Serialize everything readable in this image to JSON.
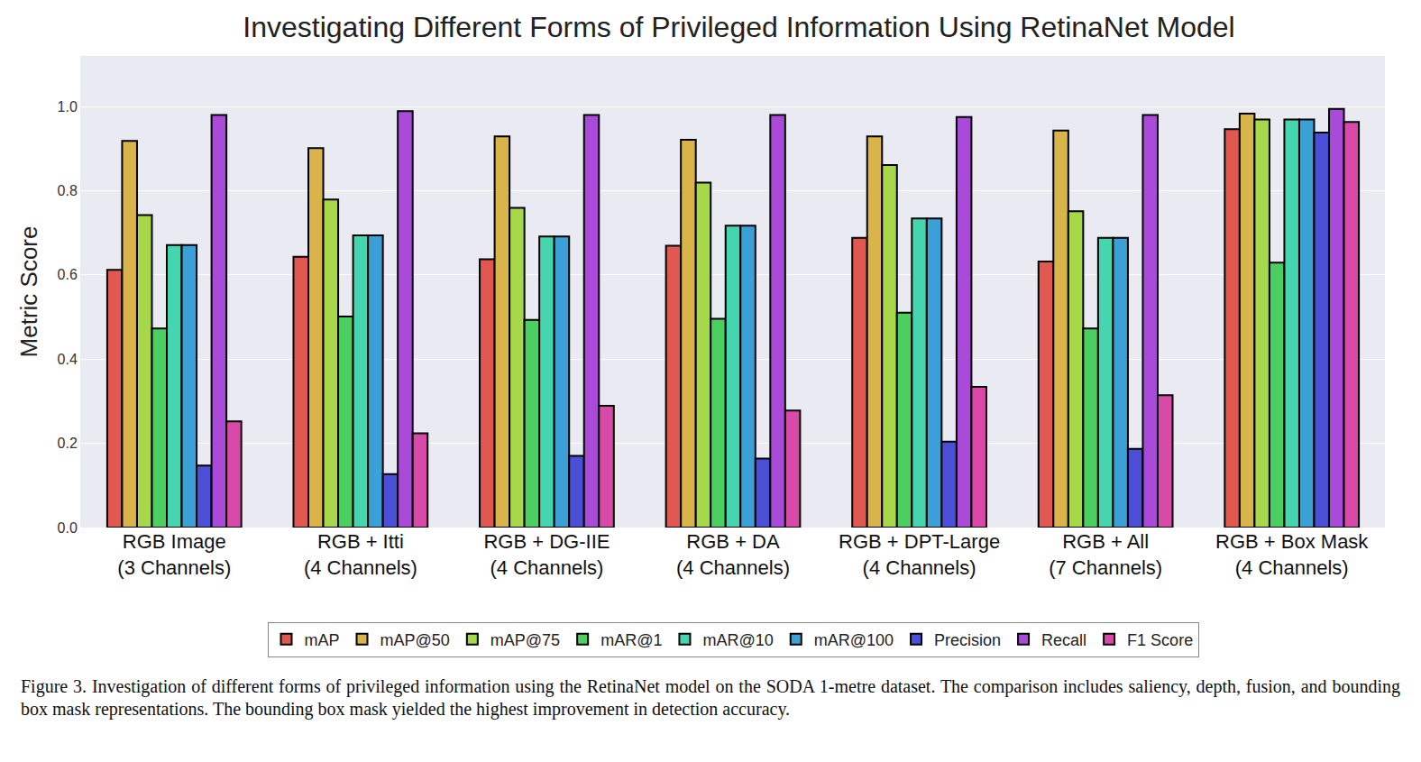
{
  "chart_data": {
    "type": "bar",
    "title": "Investigating Different Forms of Privileged Information Using RetinaNet Model",
    "y_label": "Metric Score",
    "categories": [
      "RGB Image (3 Channels)",
      "RGB + Itti (4 Channels)",
      "RGB + DG-IIE (4 Channels)",
      "RGB + DA (4 Channels)",
      "RGB + DPT-Large (4 Channels)",
      "RGB + All (7 Channels)",
      "RGB + Box Mask (4 Channels)"
    ],
    "series": [
      {
        "name": "mAP",
        "color": "#e0584f",
        "values": [
          0.612,
          0.643,
          0.637,
          0.669,
          0.688,
          0.632,
          0.946
        ]
      },
      {
        "name": "mAP@50",
        "color": "#d9b44a",
        "values": [
          0.918,
          0.901,
          0.929,
          0.921,
          0.929,
          0.943,
          0.983
        ]
      },
      {
        "name": "mAP@75",
        "color": "#a6d84a",
        "values": [
          0.742,
          0.779,
          0.759,
          0.819,
          0.861,
          0.751,
          0.969
        ]
      },
      {
        "name": "mAR@1",
        "color": "#4ccf61",
        "values": [
          0.473,
          0.501,
          0.493,
          0.496,
          0.51,
          0.473,
          0.629
        ]
      },
      {
        "name": "mAR@10",
        "color": "#45d6b0",
        "values": [
          0.671,
          0.694,
          0.691,
          0.717,
          0.734,
          0.688,
          0.969
        ]
      },
      {
        "name": "mAR@100",
        "color": "#3aa0d6",
        "values": [
          0.671,
          0.694,
          0.691,
          0.717,
          0.734,
          0.688,
          0.969
        ]
      },
      {
        "name": "Precision",
        "color": "#4a4fd6",
        "values": [
          0.147,
          0.127,
          0.17,
          0.164,
          0.204,
          0.187,
          0.938
        ]
      },
      {
        "name": "Recall",
        "color": "#a94ad9",
        "values": [
          0.98,
          0.989,
          0.98,
          0.98,
          0.975,
          0.98,
          0.994
        ]
      },
      {
        "name": "F1 Score",
        "color": "#d94aa8",
        "values": [
          0.252,
          0.224,
          0.289,
          0.278,
          0.334,
          0.314,
          0.963
        ]
      }
    ],
    "ylim": [
      0,
      1.12
    ],
    "yticks": [
      {
        "value": 0,
        "label": "0.0"
      },
      0.2,
      0.4,
      0.6,
      0.8,
      {
        "value": 1,
        "label": "1.0"
      }
    ],
    "grid": true,
    "legend": "bottom",
    "caption": "Figure 3.  Investigation of different forms of privileged information using the RetinaNet model on the SODA 1-metre dataset. The comparison includes saliency, depth, fusion, and bounding box mask representations. The bounding box mask yielded the highest improvement in detection accuracy."
  }
}
